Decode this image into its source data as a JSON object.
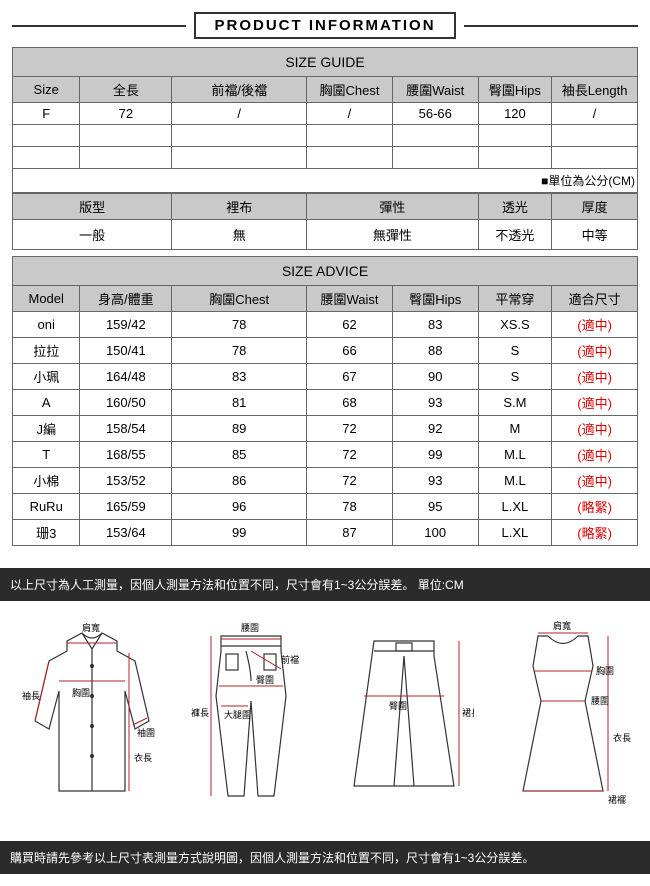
{
  "title": "PRODUCT INFORMATION",
  "sizeGuide": {
    "heading": "SIZE GUIDE",
    "cols": [
      "Size",
      "全長",
      "前襠/後襠",
      "胸圍Chest",
      "腰圍Waist",
      "臀圍Hips",
      "袖長Length"
    ],
    "row": [
      "F",
      "72",
      "/",
      "/",
      "56-66",
      "120",
      "/"
    ],
    "unitNote": "■單位為公分(CM)"
  },
  "fabric": {
    "cols": [
      "版型",
      "裡布",
      "彈性",
      "透光",
      "厚度"
    ],
    "row": [
      "一般",
      "無",
      "無彈性",
      "不透光",
      "中等"
    ]
  },
  "sizeAdvice": {
    "heading": "SIZE ADVICE",
    "cols": [
      "Model",
      "身高/體重",
      "胸圍Chest",
      "腰圍Waist",
      "臀圍Hips",
      "平常穿",
      "適合尺寸"
    ],
    "rows": [
      [
        "oni",
        "159/42",
        "78",
        "62",
        "83",
        "XS.S",
        "(適中)"
      ],
      [
        "拉拉",
        "150/41",
        "78",
        "66",
        "88",
        "S",
        "(適中)"
      ],
      [
        "小珮",
        "164/48",
        "83",
        "67",
        "90",
        "S",
        "(適中)"
      ],
      [
        "A",
        "160/50",
        "81",
        "68",
        "93",
        "S.M",
        "(適中)"
      ],
      [
        "J編",
        "158/54",
        "89",
        "72",
        "92",
        "M",
        "(適中)"
      ],
      [
        "T",
        "168/55",
        "85",
        "72",
        "99",
        "M.L",
        "(適中)"
      ],
      [
        "小棉",
        "153/52",
        "86",
        "72",
        "93",
        "M.L",
        "(適中)"
      ],
      [
        "RuRu",
        "165/59",
        "96",
        "78",
        "95",
        "L.XL",
        "(略緊)"
      ],
      [
        "珊3",
        "153/64",
        "99",
        "87",
        "100",
        "L.XL",
        "(略緊)"
      ]
    ]
  },
  "barTop": "以上尺寸為人工測量，因個人測量方法和位置不同，尺寸會有1~3公分誤差。 單位:CM",
  "barBottom": "購買時請先參考以上尺寸表測量方式說明圖，因個人測量方法和位置不同，尺寸會有1~3公分誤差。",
  "diagramLabels": {
    "shoulder": "肩寬",
    "chest": "胸圍",
    "sleeve": "袖長",
    "cuff": "袖圍",
    "length": "衣長",
    "waist": "腰圍",
    "frontRise": "前襠",
    "hip": "臀圍",
    "thigh": "大腿圍",
    "pantLen": "褲長",
    "skirtLen": "裙長",
    "hem": "裙襬"
  },
  "colors": {
    "border": "#666666",
    "headerBg": "#c9c9c9",
    "barBg": "#2b2b2b",
    "barText": "#ffffff",
    "fitText": "#dd0000",
    "diagramLine": "#333333",
    "diagramGuide": "#b02020"
  }
}
